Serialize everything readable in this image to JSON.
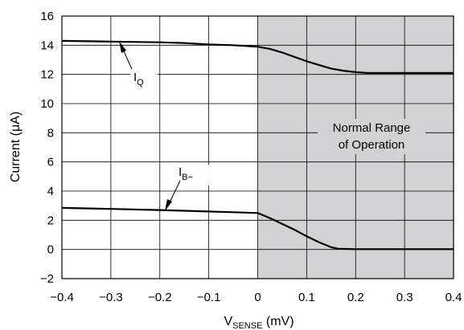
{
  "chart_data": {
    "type": "line",
    "title": "",
    "xlabel": {
      "main": "V",
      "sub": "SENSE",
      "unit": " (mV)"
    },
    "ylabel": "Current (μA)",
    "xlim": [
      -0.4,
      0.4
    ],
    "ylim": [
      -2,
      16
    ],
    "xticks": [
      "−0.4",
      "−0.3",
      "−0.2",
      "−0.1",
      "0",
      "0.1",
      "0.2",
      "0.3",
      "0.4"
    ],
    "yticks": [
      "−2",
      "0",
      "2",
      "4",
      "6",
      "8",
      "10",
      "12",
      "14",
      "16"
    ],
    "grid": true,
    "shaded_region": {
      "x": [
        0,
        0.4
      ],
      "color": "#d2d2d4",
      "label_line1": "Normal Range",
      "label_line2": "of Operation"
    },
    "series": [
      {
        "name": {
          "main": "I",
          "sub": "Q"
        },
        "x": [
          -0.4,
          -0.3,
          -0.2,
          -0.15,
          -0.1,
          -0.05,
          0,
          0.025,
          0.05,
          0.075,
          0.1,
          0.125,
          0.15,
          0.175,
          0.2,
          0.225,
          0.25,
          0.3,
          0.4
        ],
        "y": [
          14.3,
          14.25,
          14.2,
          14.15,
          14.05,
          14.0,
          13.9,
          13.75,
          13.5,
          13.2,
          12.9,
          12.65,
          12.4,
          12.25,
          12.15,
          12.1,
          12.1,
          12.1,
          12.1
        ]
      },
      {
        "name": {
          "main": "I",
          "sub": "B−"
        },
        "x": [
          -0.4,
          -0.3,
          -0.2,
          -0.15,
          -0.1,
          -0.05,
          0,
          0.025,
          0.05,
          0.075,
          0.1,
          0.125,
          0.15,
          0.165,
          0.2,
          0.25,
          0.3,
          0.4
        ],
        "y": [
          2.85,
          2.78,
          2.7,
          2.65,
          2.6,
          2.55,
          2.5,
          2.15,
          1.75,
          1.35,
          0.9,
          0.5,
          0.15,
          0.05,
          0.02,
          0.02,
          0.02,
          0.02
        ]
      }
    ]
  }
}
